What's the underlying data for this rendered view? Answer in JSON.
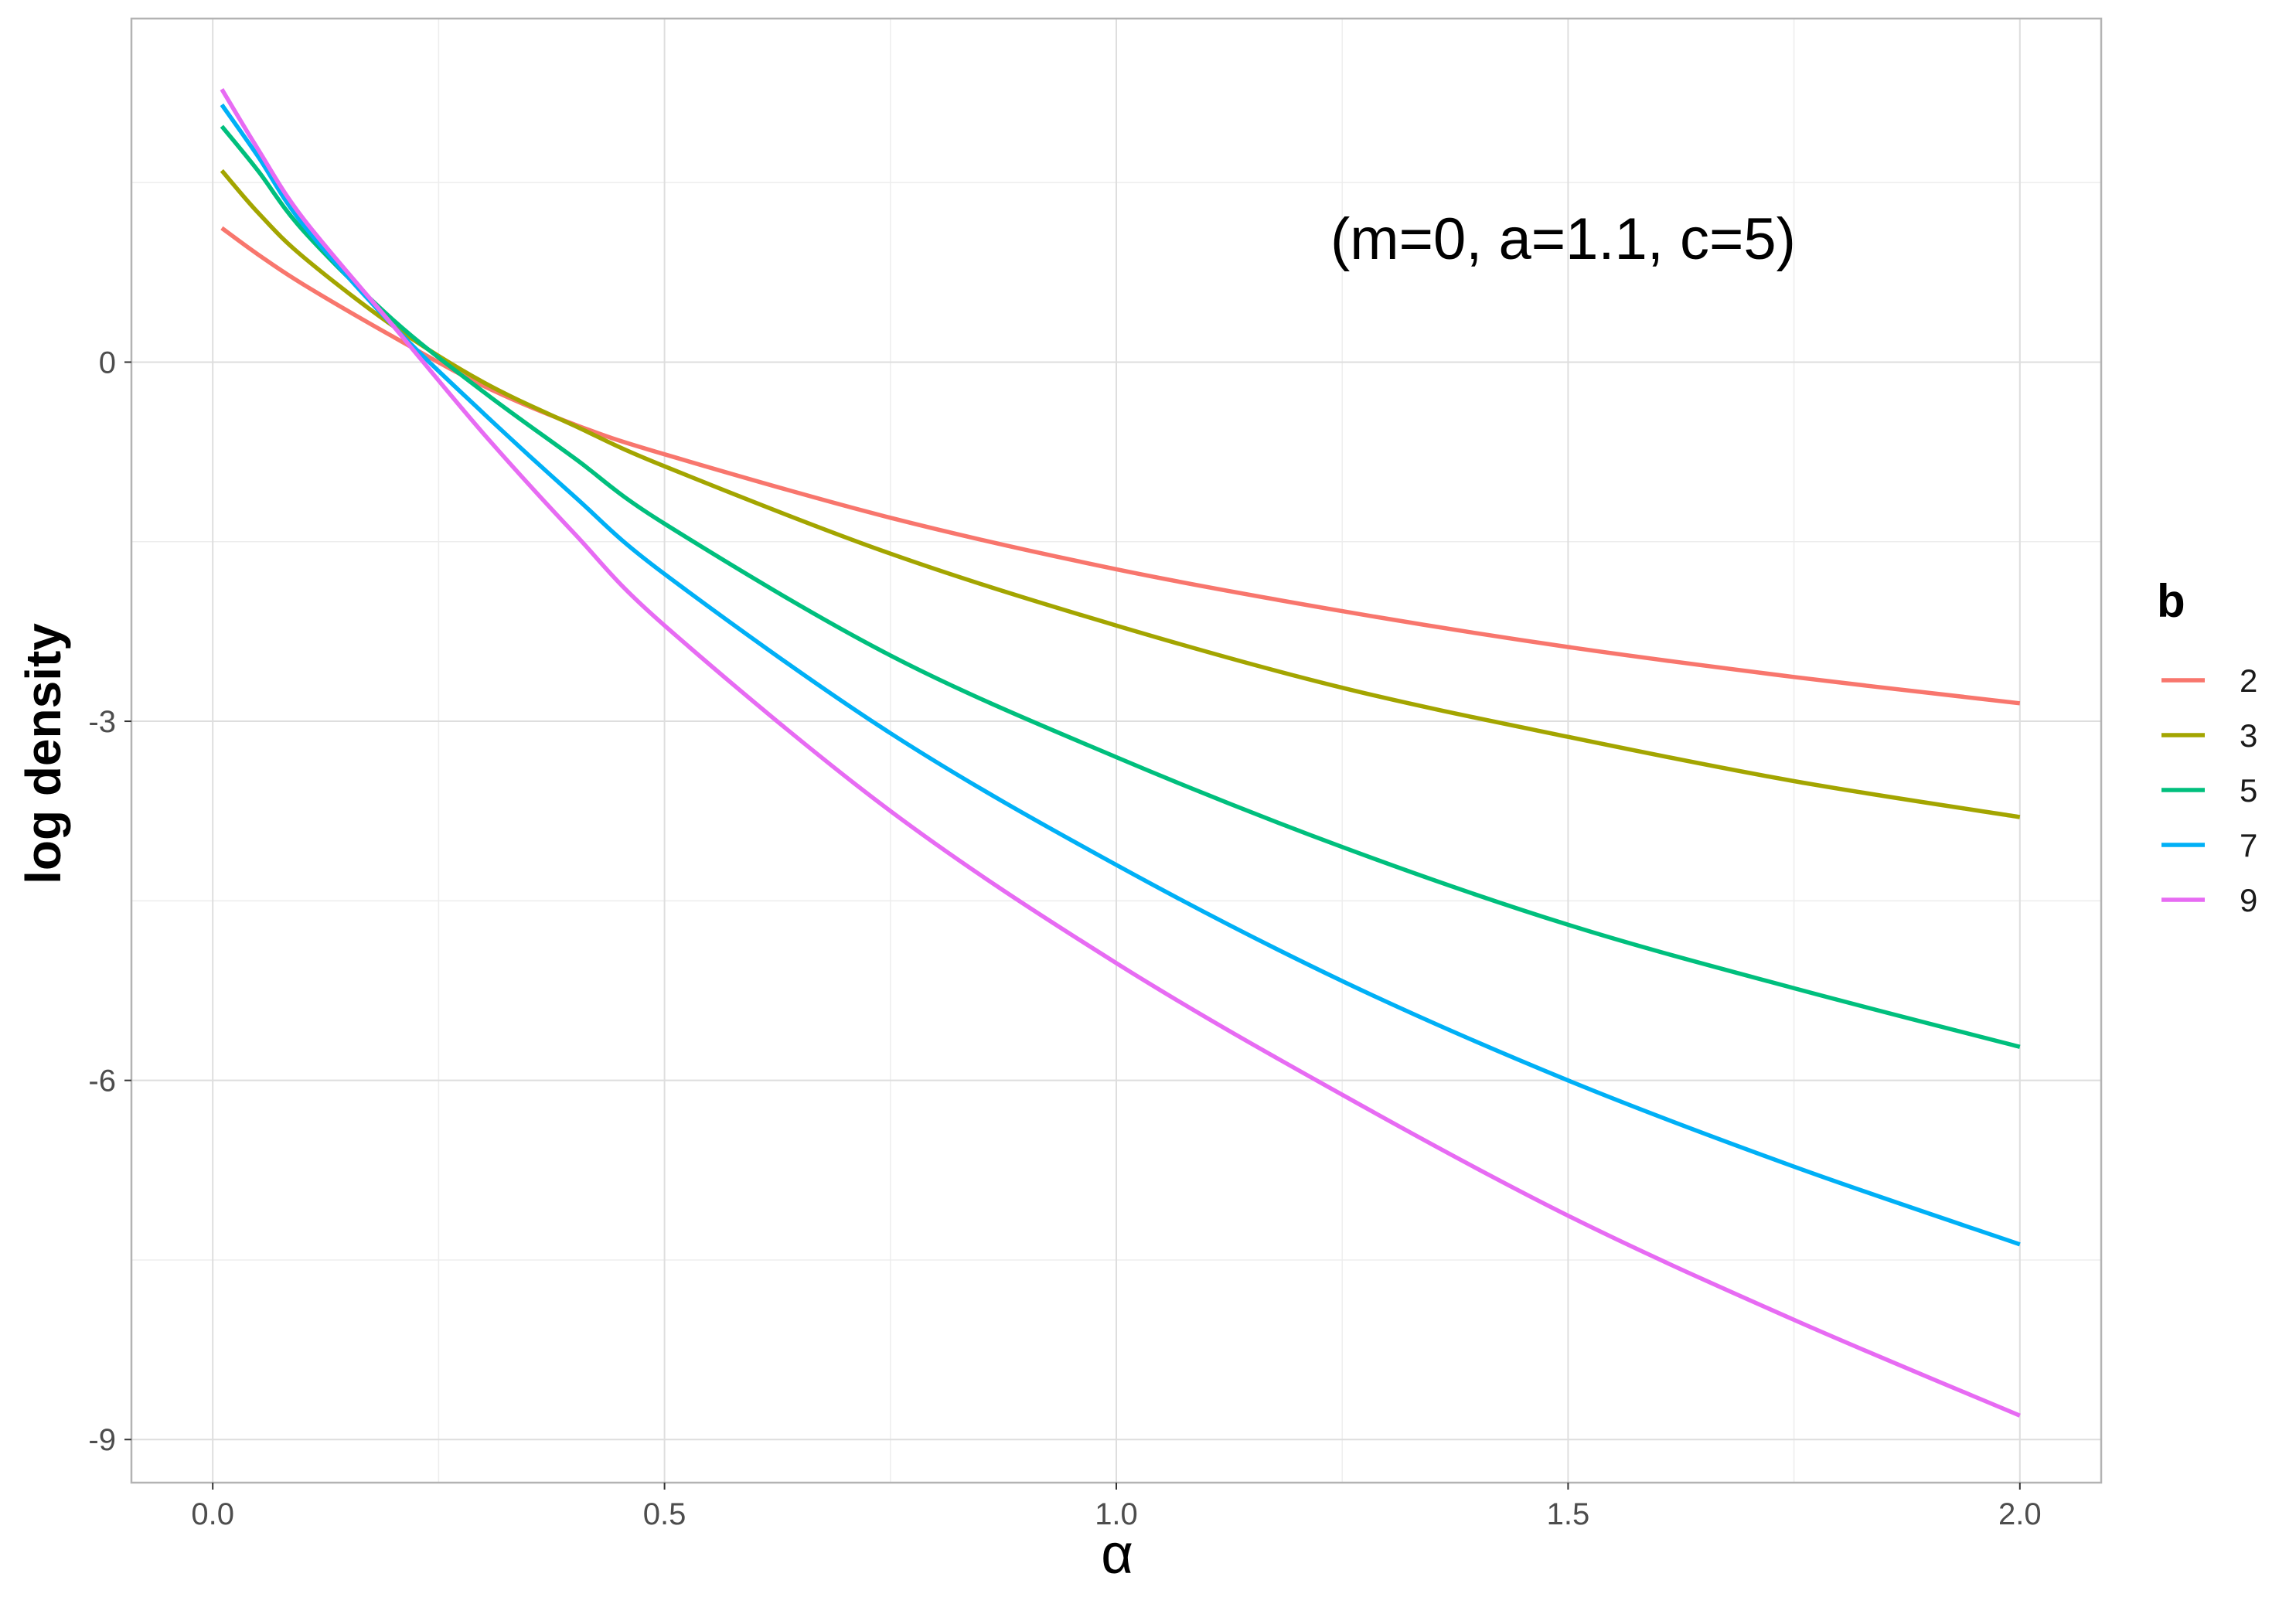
{
  "chart_data": {
    "type": "line",
    "xlabel": "α",
    "ylabel": "log density",
    "annotation": "(m=0, a=1.1, c=5)",
    "xlim": [
      -0.09,
      2.09
    ],
    "ylim": [
      -9.36,
      2.87
    ],
    "x_ticks": [
      0.0,
      0.5,
      1.0,
      1.5,
      2.0
    ],
    "x_tick_labels": [
      "0.0",
      "0.5",
      "1.0",
      "1.5",
      "2.0"
    ],
    "y_ticks": [
      -9,
      -6,
      -3,
      0
    ],
    "y_tick_labels": [
      "-9",
      "-6",
      "-3",
      "0"
    ],
    "x_minor": [
      0.25,
      0.75,
      1.25,
      1.75
    ],
    "y_minor": [
      -7.5,
      -4.5,
      -1.5,
      1.5
    ],
    "grid": true,
    "legend": {
      "title": "b",
      "position": "right"
    },
    "series": [
      {
        "name": "2",
        "color": "#F8766D",
        "x": [
          0.01,
          0.05,
          0.1,
          0.2,
          0.3,
          0.4,
          0.5,
          0.75,
          1.0,
          1.25,
          1.5,
          1.75,
          2.0
        ],
        "y": [
          1.12,
          0.9,
          0.65,
          0.21,
          -0.2,
          -0.52,
          -0.77,
          -1.3,
          -1.73,
          -2.08,
          -2.38,
          -2.63,
          -2.85
        ]
      },
      {
        "name": "3",
        "color": "#A3A500",
        "x": [
          0.01,
          0.05,
          0.1,
          0.2,
          0.3,
          0.4,
          0.5,
          0.75,
          1.0,
          1.25,
          1.5,
          1.75,
          2.0
        ],
        "y": [
          1.6,
          1.25,
          0.88,
          0.3,
          -0.17,
          -0.53,
          -0.87,
          -1.6,
          -2.2,
          -2.72,
          -3.13,
          -3.5,
          -3.8
        ]
      },
      {
        "name": "5",
        "color": "#00BF7D",
        "x": [
          0.01,
          0.05,
          0.1,
          0.2,
          0.3,
          0.4,
          0.5,
          0.75,
          1.0,
          1.25,
          1.5,
          1.75,
          2.0
        ],
        "y": [
          1.97,
          1.6,
          1.1,
          0.35,
          -0.25,
          -0.8,
          -1.35,
          -2.45,
          -3.3,
          -4.05,
          -4.7,
          -5.23,
          -5.72
        ]
      },
      {
        "name": "7",
        "color": "#00B0F6",
        "x": [
          0.01,
          0.05,
          0.1,
          0.2,
          0.3,
          0.4,
          0.5,
          0.75,
          1.0,
          1.25,
          1.5,
          1.75,
          2.0
        ],
        "y": [
          2.15,
          1.72,
          1.15,
          0.3,
          -0.43,
          -1.12,
          -1.77,
          -3.1,
          -4.2,
          -5.17,
          -6.0,
          -6.72,
          -7.37
        ]
      },
      {
        "name": "9",
        "color": "#E76BF3",
        "x": [
          0.01,
          0.05,
          0.1,
          0.2,
          0.3,
          0.4,
          0.5,
          0.75,
          1.0,
          1.25,
          1.5,
          1.75,
          2.0
        ],
        "y": [
          2.28,
          1.78,
          1.2,
          0.3,
          -0.6,
          -1.43,
          -2.2,
          -3.75,
          -5.02,
          -6.12,
          -7.13,
          -8.0,
          -8.8
        ]
      }
    ]
  }
}
